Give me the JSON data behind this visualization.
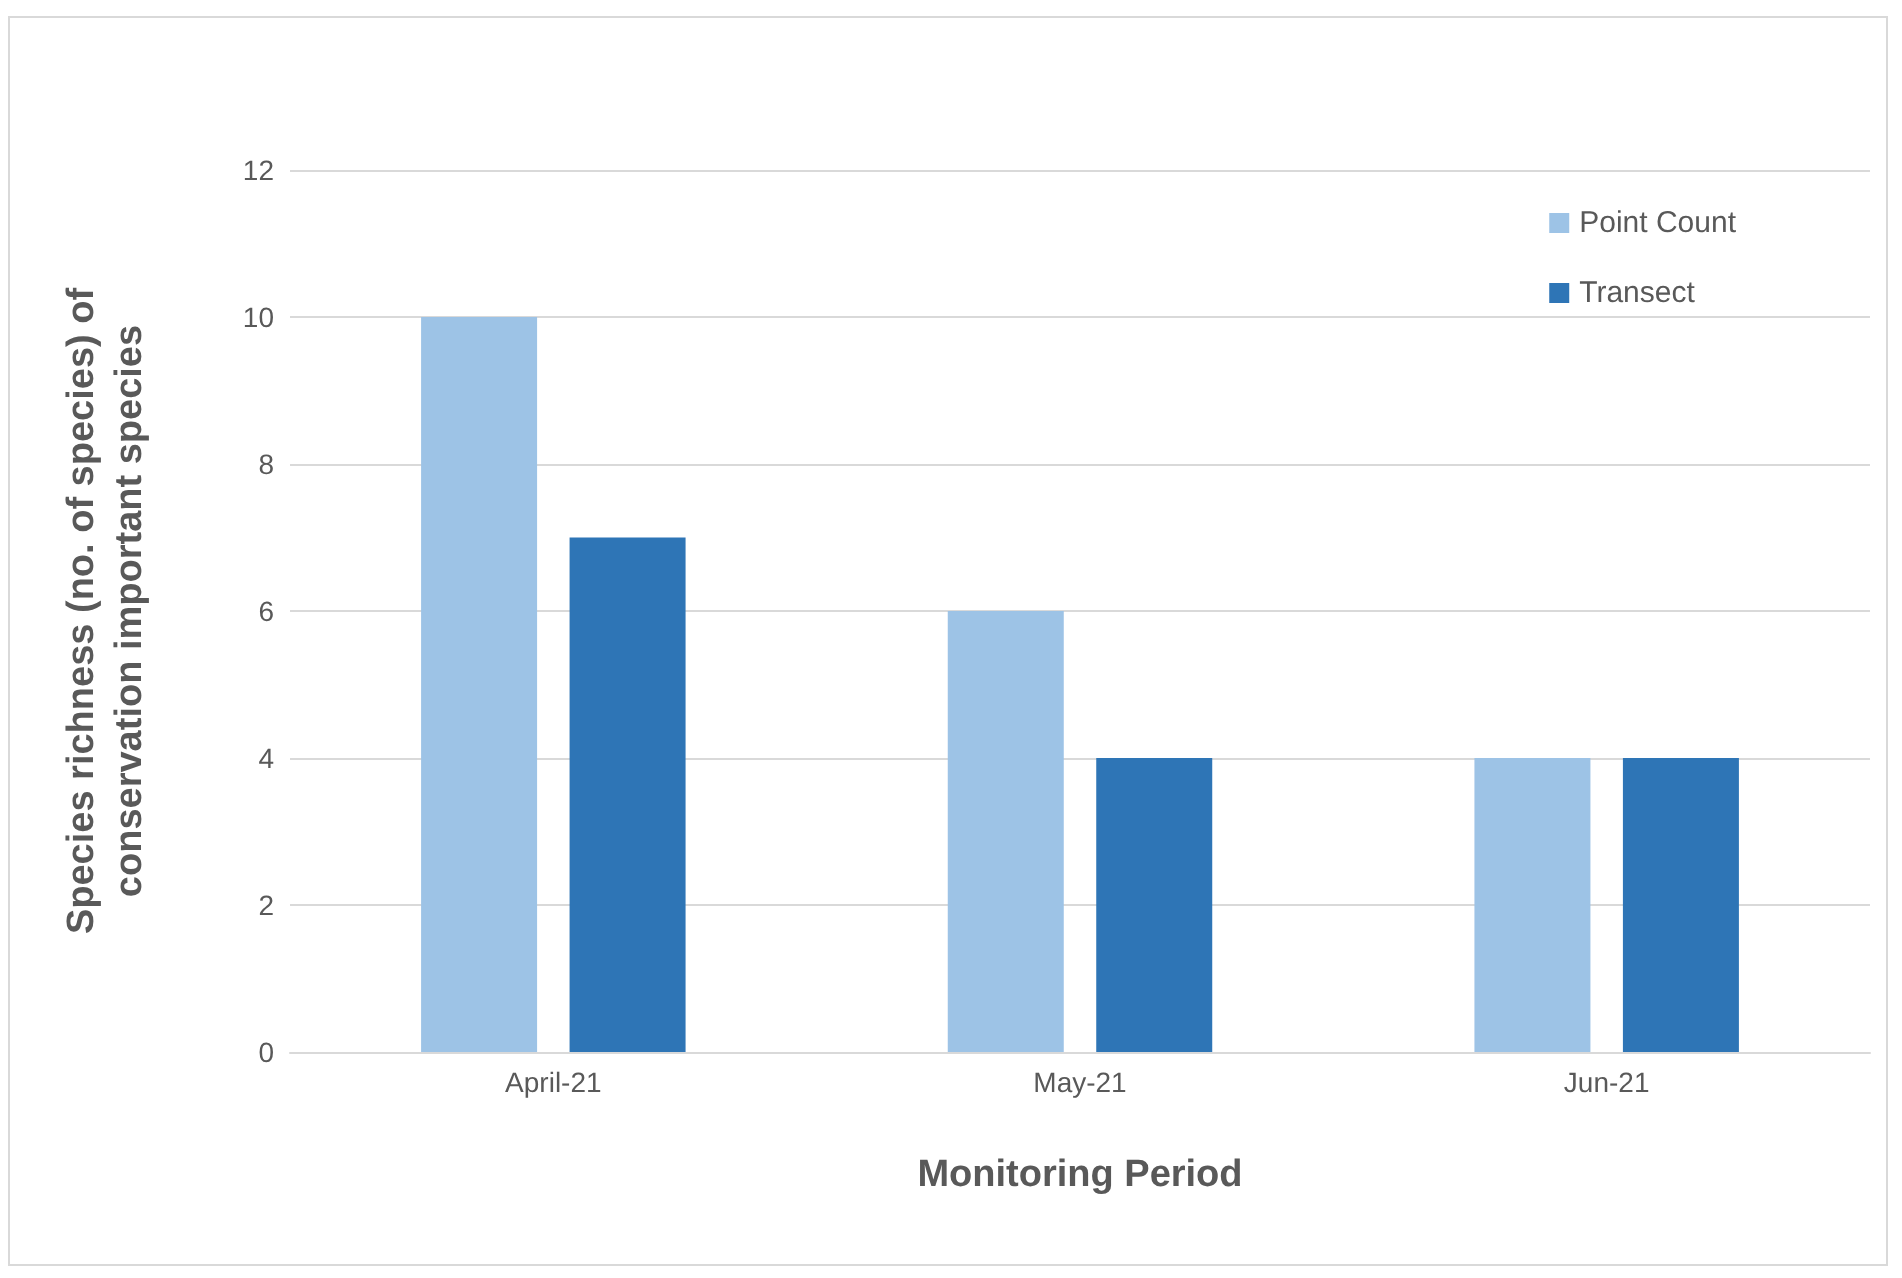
{
  "chart_data": {
    "type": "bar",
    "xlabel": "Monitoring Period",
    "ylabel": "Species richness (no. of species) of\nconservation important species",
    "categories": [
      "April-21",
      "May-21",
      "Jun-21"
    ],
    "series": [
      {
        "name": "Point Count",
        "color": "#9dc3e6",
        "values": [
          10,
          6,
          4
        ]
      },
      {
        "name": "Transect",
        "color": "#2e75b6",
        "values": [
          7,
          4,
          4
        ]
      }
    ],
    "ylim": [
      0,
      12
    ],
    "yticks": [
      0,
      2,
      4,
      6,
      8,
      10,
      12
    ],
    "grid": "y",
    "legend": "top right"
  }
}
